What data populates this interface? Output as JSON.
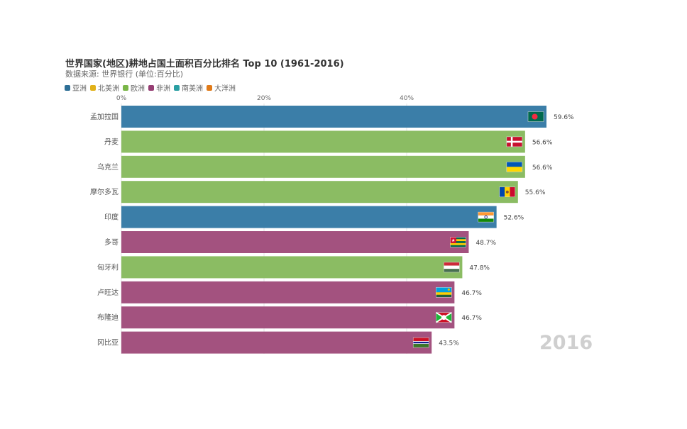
{
  "chart_data": {
    "type": "bar",
    "orientation": "horizontal",
    "title": "世界国家(地区)耕地占国土面积百分比排名 Top 10 (1961-2016)",
    "subtitle": "数据来源: 世界银行 (单位:百分比)",
    "year": "2016",
    "xlim": [
      0,
      59.6
    ],
    "x_ticks": [
      {
        "value": 0,
        "label": "0%"
      },
      {
        "value": 20,
        "label": "20%"
      },
      {
        "value": 40,
        "label": "40%"
      }
    ],
    "legend": [
      {
        "name": "亚洲",
        "color": "#2e6f96"
      },
      {
        "name": "北美洲",
        "color": "#e1b11a"
      },
      {
        "name": "欧洲",
        "color": "#7ab648"
      },
      {
        "name": "非洲",
        "color": "#963e73"
      },
      {
        "name": "南美洲",
        "color": "#2a9fa3"
      },
      {
        "name": "大洋洲",
        "color": "#e07a18"
      }
    ],
    "categories": [
      "孟加拉国",
      "丹麦",
      "乌克兰",
      "摩尔多瓦",
      "印度",
      "多哥",
      "匈牙利",
      "卢旺达",
      "布隆迪",
      "冈比亚"
    ],
    "values": [
      59.6,
      56.6,
      56.6,
      55.6,
      52.6,
      48.7,
      47.8,
      46.7,
      46.7,
      43.5
    ],
    "value_labels": [
      "59.6%",
      "56.6%",
      "56.6%",
      "55.6%",
      "52.6%",
      "48.7%",
      "47.8%",
      "46.7%",
      "46.7%",
      "43.5%"
    ],
    "continents": [
      "亚洲",
      "欧洲",
      "欧洲",
      "欧洲",
      "亚洲",
      "非洲",
      "欧洲",
      "非洲",
      "非洲",
      "非洲"
    ],
    "bar_colors": [
      "#3b7ea8",
      "#8bbc63",
      "#8bbc63",
      "#8bbc63",
      "#3b7ea8",
      "#a3527f",
      "#8bbc63",
      "#a3527f",
      "#a3527f",
      "#a3527f"
    ],
    "flags": [
      "bangladesh-flag",
      "denmark-flag",
      "ukraine-flag",
      "moldova-flag",
      "india-flag",
      "togo-flag",
      "hungary-flag",
      "rwanda-flag",
      "burundi-flag",
      "gambia-flag"
    ]
  }
}
